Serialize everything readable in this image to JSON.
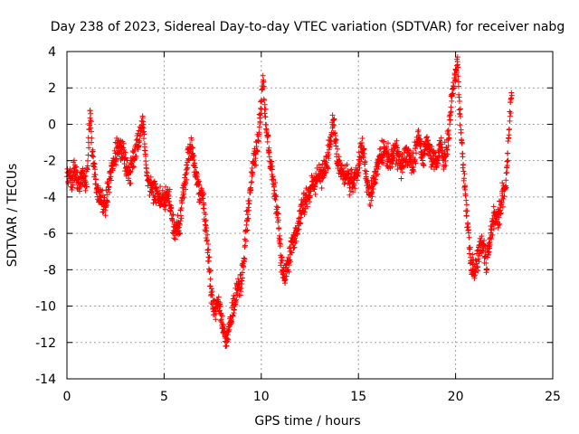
{
  "chart_data": {
    "type": "scatter",
    "title": "Day 238 of 2023, Sidereal Day-to-day VTEC variation (SDTVAR) for receiver nabg",
    "xlabel": "GPS time / hours",
    "ylabel": "SDTVAR / TECUs",
    "xlim": [
      0,
      25
    ],
    "ylim": [
      -14,
      4
    ],
    "xticks": [
      "0",
      "5",
      "10",
      "15",
      "20",
      "25"
    ],
    "yticks": [
      "4",
      "2",
      "0",
      "-2",
      "-4",
      "-6",
      "-8",
      "-10",
      "-12",
      "-14"
    ],
    "grid": true,
    "marker": "+",
    "series": [
      {
        "name": "SDTVAR",
        "color": "#ff0000",
        "trend": [
          [
            0.0,
            -2.8
          ],
          [
            0.2,
            -3.1
          ],
          [
            0.4,
            -2.6
          ],
          [
            0.6,
            -3.3
          ],
          [
            0.8,
            -2.9
          ],
          [
            1.0,
            -3.6
          ],
          [
            1.1,
            -1.2
          ],
          [
            1.2,
            0.8
          ],
          [
            1.3,
            -1.5
          ],
          [
            1.5,
            -3.4
          ],
          [
            1.8,
            -4.1
          ],
          [
            2.0,
            -4.3
          ],
          [
            2.2,
            -3.0
          ],
          [
            2.5,
            -1.6
          ],
          [
            2.8,
            -1.2
          ],
          [
            3.0,
            -1.9
          ],
          [
            3.2,
            -2.8
          ],
          [
            3.5,
            -1.5
          ],
          [
            3.7,
            -1.0
          ],
          [
            3.9,
            0.2
          ],
          [
            4.1,
            -2.6
          ],
          [
            4.4,
            -3.6
          ],
          [
            4.7,
            -3.9
          ],
          [
            5.0,
            -4.3
          ],
          [
            5.2,
            -3.9
          ],
          [
            5.4,
            -5.0
          ],
          [
            5.6,
            -6.0
          ],
          [
            5.8,
            -5.5
          ],
          [
            6.0,
            -3.6
          ],
          [
            6.2,
            -2.1
          ],
          [
            6.4,
            -1.1
          ],
          [
            6.6,
            -2.5
          ],
          [
            6.8,
            -3.6
          ],
          [
            7.0,
            -4.1
          ],
          [
            7.2,
            -6.0
          ],
          [
            7.4,
            -9.0
          ],
          [
            7.6,
            -10.5
          ],
          [
            7.8,
            -9.8
          ],
          [
            8.0,
            -11.0
          ],
          [
            8.2,
            -12.1
          ],
          [
            8.4,
            -11.0
          ],
          [
            8.6,
            -9.8
          ],
          [
            8.8,
            -9.0
          ],
          [
            9.0,
            -8.6
          ],
          [
            9.2,
            -6.1
          ],
          [
            9.4,
            -4.0
          ],
          [
            9.6,
            -1.9
          ],
          [
            9.8,
            -1.2
          ],
          [
            10.0,
            1.0
          ],
          [
            10.1,
            2.6
          ],
          [
            10.2,
            0.6
          ],
          [
            10.4,
            -1.5
          ],
          [
            10.6,
            -2.9
          ],
          [
            10.8,
            -4.5
          ],
          [
            11.0,
            -7.4
          ],
          [
            11.2,
            -8.4
          ],
          [
            11.4,
            -7.5
          ],
          [
            11.6,
            -6.5
          ],
          [
            11.8,
            -6.0
          ],
          [
            12.0,
            -5.0
          ],
          [
            12.3,
            -4.2
          ],
          [
            12.6,
            -3.5
          ],
          [
            12.9,
            -3.0
          ],
          [
            13.2,
            -2.7
          ],
          [
            13.5,
            -1.5
          ],
          [
            13.7,
            0.2
          ],
          [
            13.9,
            -1.8
          ],
          [
            14.1,
            -2.5
          ],
          [
            14.4,
            -2.9
          ],
          [
            14.7,
            -3.3
          ],
          [
            15.0,
            -2.4
          ],
          [
            15.2,
            -1.0
          ],
          [
            15.4,
            -3.0
          ],
          [
            15.6,
            -4.0
          ],
          [
            15.8,
            -3.1
          ],
          [
            16.0,
            -2.1
          ],
          [
            16.3,
            -1.4
          ],
          [
            16.6,
            -2.0
          ],
          [
            16.9,
            -1.4
          ],
          [
            17.2,
            -2.4
          ],
          [
            17.5,
            -1.6
          ],
          [
            17.8,
            -2.4
          ],
          [
            18.1,
            -0.6
          ],
          [
            18.3,
            -2.0
          ],
          [
            18.5,
            -1.0
          ],
          [
            18.8,
            -1.8
          ],
          [
            19.0,
            -2.2
          ],
          [
            19.2,
            -1.0
          ],
          [
            19.4,
            -2.1
          ],
          [
            19.6,
            -0.9
          ],
          [
            19.8,
            1.5
          ],
          [
            20.0,
            2.7
          ],
          [
            20.1,
            3.6
          ],
          [
            20.2,
            1.0
          ],
          [
            20.4,
            -2.6
          ],
          [
            20.6,
            -5.0
          ],
          [
            20.8,
            -7.8
          ],
          [
            21.0,
            -8.1
          ],
          [
            21.2,
            -7.0
          ],
          [
            21.4,
            -6.5
          ],
          [
            21.6,
            -7.6
          ],
          [
            21.8,
            -6.2
          ],
          [
            22.0,
            -4.9
          ],
          [
            22.2,
            -5.3
          ],
          [
            22.4,
            -4.0
          ],
          [
            22.6,
            -3.2
          ],
          [
            22.7,
            -1.5
          ],
          [
            22.8,
            0.6
          ],
          [
            22.9,
            1.8
          ]
        ]
      }
    ]
  }
}
